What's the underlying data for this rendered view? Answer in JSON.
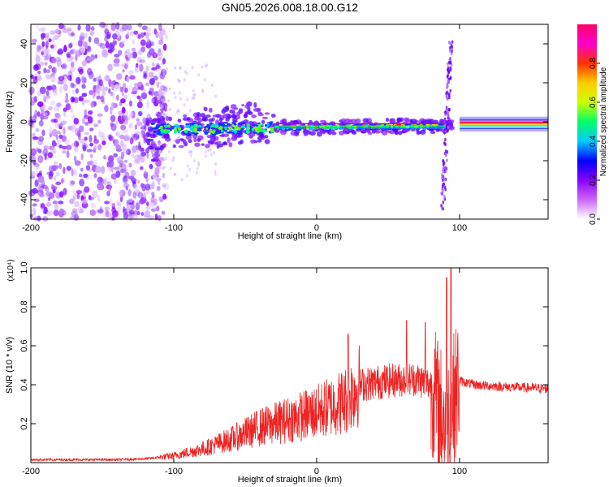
{
  "figure_title": "GN05.2026.008.18.00.G12",
  "chart_data": [
    {
      "type": "heatmap",
      "title": "GN05.2026.008.18.00.G12",
      "xlabel": "Height of straight line (km)",
      "ylabel": "Frequency (Hz)",
      "xlim": [
        -200,
        162
      ],
      "ylim": [
        -50,
        50
      ],
      "x_ticks": [
        -200,
        -100,
        0,
        100
      ],
      "x_tick_labels": [
        "-200",
        "-100",
        "0",
        "100"
      ],
      "y_ticks": [
        40,
        20,
        0,
        -20,
        -40
      ],
      "y_tick_labels": [
        "40",
        "20",
        "0",
        "-20",
        "-40"
      ],
      "colorbar": {
        "label": "Normalized spectral amplitude",
        "range": [
          0,
          1
        ],
        "ticks": [
          0.0,
          0.2,
          0.4,
          0.6,
          0.8
        ],
        "tick_labels": [
          "0.0",
          "0.2",
          "0.4",
          "0.6",
          "0.8"
        ],
        "colors": [
          "#ffffff",
          "#cc66ff",
          "#8800ff",
          "#0000ff",
          "#00ccff",
          "#00ff66",
          "#ccff00",
          "#ffcc00",
          "#ff3300",
          "#ff00cc",
          "#ff0066"
        ]
      },
      "trace_description_values": {
        "noise_region_x": [
          -200,
          -105
        ],
        "signal_start_x": -120,
        "center_frequency_start": -4,
        "center_frequency_end": -2,
        "spike_x": 92,
        "spike_frequency_range": [
          -45,
          42
        ],
        "steady_region_x": [
          100,
          162
        ]
      }
    },
    {
      "type": "line",
      "xlabel": "Height of straight line (km)",
      "ylabel": "SNR (10 * v/v)",
      "y_scale_label": "(x10⁴)",
      "xlim": [
        -200,
        162
      ],
      "ylim": [
        0,
        1.0
      ],
      "x_ticks": [
        -200,
        -100,
        0,
        100
      ],
      "x_tick_labels": [
        "-200",
        "-100",
        "0",
        "100"
      ],
      "y_ticks": [
        0.2,
        0.4,
        0.6,
        0.8,
        1.0
      ],
      "y_tick_labels": [
        "0.2",
        "0.4",
        "0.6",
        "0.8",
        "1.0"
      ],
      "series": [
        {
          "name": "SNR",
          "color": "#ee2222",
          "envelope_x": [
            -200,
            -140,
            -120,
            -100,
            -80,
            -60,
            -40,
            -20,
            0,
            20,
            30,
            50,
            70,
            80,
            85,
            90,
            95,
            100,
            110,
            130,
            162
          ],
          "envelope_y": [
            0.015,
            0.015,
            0.02,
            0.035,
            0.07,
            0.12,
            0.18,
            0.22,
            0.26,
            0.32,
            0.4,
            0.42,
            0.43,
            0.4,
            0.3,
            0.2,
            0.3,
            0.42,
            0.4,
            0.39,
            0.38
          ],
          "peaks": [
            {
              "x": 22,
              "y": 0.66
            },
            {
              "x": 63,
              "y": 0.73
            },
            {
              "x": 76,
              "y": 0.72
            },
            {
              "x": 91,
              "y": 0.95
            },
            {
              "x": 94,
              "y": 1.0
            }
          ]
        }
      ]
    }
  ]
}
